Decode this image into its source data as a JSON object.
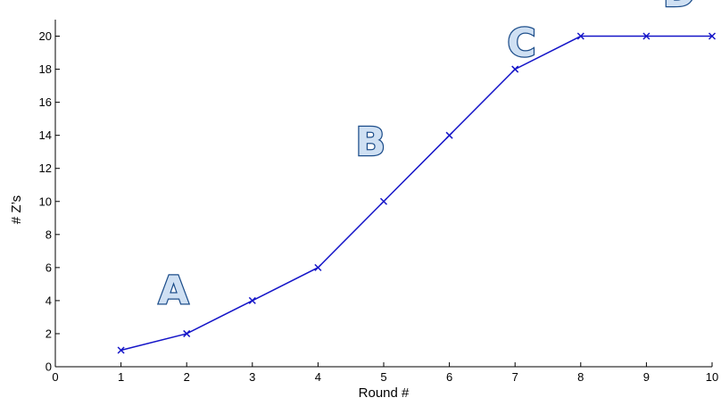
{
  "chart_data": {
    "type": "line",
    "title": "",
    "xlabel": "Round #",
    "ylabel": "# Z’s",
    "xlim": [
      0,
      10
    ],
    "ylim": [
      0,
      21
    ],
    "x_ticks": [
      0,
      1,
      2,
      3,
      4,
      5,
      6,
      7,
      8,
      9,
      10
    ],
    "y_ticks": [
      0,
      2,
      4,
      6,
      8,
      10,
      12,
      14,
      16,
      18,
      20
    ],
    "grid": false,
    "marker": "x",
    "series": [
      {
        "color": "#1515c8",
        "x": [
          1,
          2,
          3,
          4,
          5,
          6,
          7,
          8,
          9,
          10
        ],
        "y": [
          1,
          2,
          4,
          6,
          10,
          14,
          18,
          20,
          20,
          20
        ]
      }
    ],
    "annotations": [
      {
        "text": "A",
        "x": 1.8,
        "y": 3.8
      },
      {
        "text": "B",
        "x": 4.8,
        "y": 12.8
      },
      {
        "text": "C",
        "x": 7.1,
        "y": 18.8
      },
      {
        "text": "D",
        "x": 9.5,
        "y": 21.8
      }
    ]
  }
}
